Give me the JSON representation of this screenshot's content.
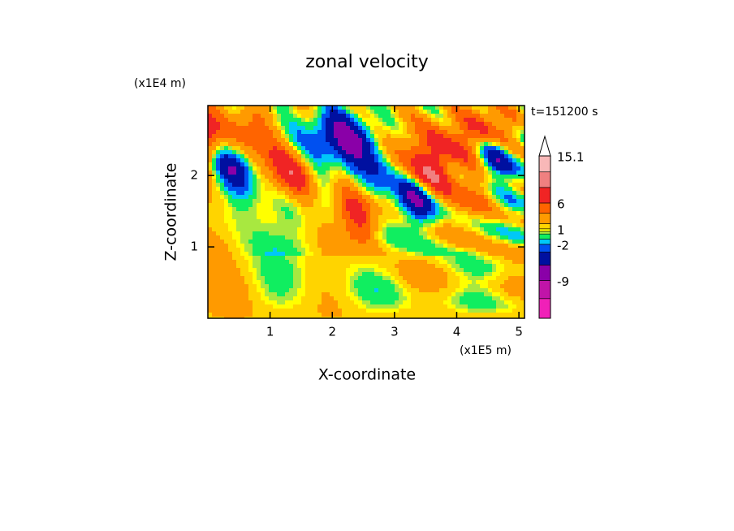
{
  "chart_data": {
    "type": "contour",
    "title": "zonal velocity",
    "x_label": "X-coordinate",
    "y_label": "Z-coordinate",
    "x_unit": "(x1E5 m)",
    "y_unit": "(x1E4 m)",
    "annotation": "t=151200 s",
    "xlim": [
      0,
      5.09
    ],
    "xticks": [
      1,
      2,
      3,
      4,
      5
    ],
    "ylim": [
      0,
      2.98
    ],
    "yticks": [
      1,
      2
    ],
    "levels": [
      -16.3,
      -12.5,
      -9,
      -6,
      -3.5,
      -2,
      -1,
      0,
      0.5,
      1,
      2,
      4,
      6,
      9,
      12,
      15.1
    ],
    "colors": [
      "#f020b8",
      "#c014a8",
      "#8a00a8",
      "#0010a0",
      "#0050f0",
      "#00c8f8",
      "#10ee60",
      "#a8e840",
      "#ffff00",
      "#ffd400",
      "#ff9a00",
      "#ff6400",
      "#f02424",
      "#f08080",
      "#f8b8b8"
    ],
    "over_color": "#ffffff",
    "cticks": [
      15.1,
      6,
      1,
      -2,
      -9
    ]
  }
}
